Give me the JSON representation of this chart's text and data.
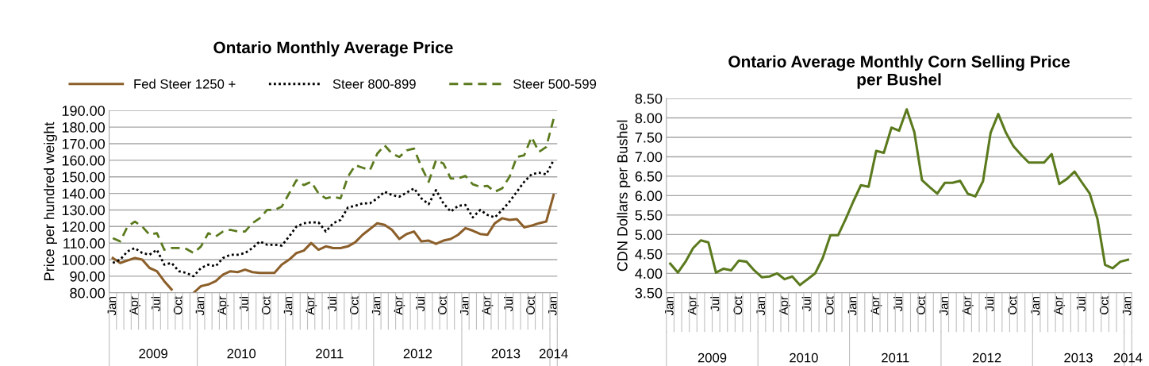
{
  "chart_data": [
    {
      "type": "line",
      "title": "Ontario Monthly Average Price",
      "ylabel": "Price per hundred weight",
      "categories": [
        "Jan",
        null,
        null,
        "Apr",
        null,
        null,
        "Jul",
        null,
        null,
        "Oct",
        null,
        null,
        "Jan",
        null,
        null,
        "Apr",
        null,
        null,
        "Jul",
        null,
        null,
        "Oct",
        null,
        null,
        "Jan",
        null,
        null,
        "Apr",
        null,
        null,
        "Jul",
        null,
        null,
        "Oct",
        null,
        null,
        "Jan",
        null,
        null,
        "Apr",
        null,
        null,
        "Jul",
        null,
        null,
        "Oct",
        null,
        null,
        "Jan",
        null,
        null,
        "Apr",
        null,
        null,
        "Jul",
        null,
        null,
        "Oct",
        null,
        null,
        "Jan"
      ],
      "annotations": [
        "2009",
        "2010",
        "2011",
        "2012",
        "2013",
        "2014"
      ],
      "series": [
        {
          "name": "Fed Steer 1250 +",
          "color": "#8c5f2a",
          "line_style": "solid",
          "values": [
            101,
            98,
            99.5,
            101,
            100,
            95,
            93,
            87,
            82,
            null,
            null,
            80,
            84,
            85,
            87,
            91,
            93,
            92.5,
            94,
            92.5,
            92,
            92,
            92,
            97,
            100,
            104,
            105.5,
            110,
            106,
            108,
            107,
            107,
            108,
            110.5,
            115,
            118.5,
            122,
            121,
            118,
            112.5,
            115.5,
            117,
            111,
            111.5,
            109.5,
            111.5,
            112.5,
            115,
            119,
            117.5,
            115.5,
            115,
            122,
            125,
            124,
            124.5,
            119.5,
            120.5,
            122,
            123,
            139
          ]
        },
        {
          "name": "Steer 800-899",
          "color": "#000000",
          "line_style": "dotted",
          "values": [
            98,
            100,
            105,
            107,
            104,
            103,
            106,
            97,
            98,
            93,
            92,
            90,
            95,
            97,
            96,
            101,
            103,
            103,
            104,
            107,
            111,
            109,
            109,
            108.5,
            114,
            120,
            122,
            122.5,
            122.5,
            117,
            122,
            124,
            131.5,
            132.5,
            134,
            134,
            137,
            141,
            139,
            138,
            140.5,
            143,
            137,
            133.5,
            142,
            134,
            129,
            132.5,
            133,
            125.5,
            130,
            127,
            125.5,
            130,
            135,
            141,
            147,
            151.5,
            152.5,
            151.5,
            160
          ]
        },
        {
          "name": "Steer 500-599",
          "color": "#5b7a1e",
          "line_style": "dashed",
          "values": [
            113,
            111,
            120,
            123,
            120,
            115,
            116,
            106,
            107,
            107,
            106.5,
            104,
            108,
            116,
            114,
            117,
            118,
            117,
            117,
            122,
            125,
            130,
            130,
            132,
            140,
            148,
            145,
            147,
            140,
            137,
            138,
            137,
            150,
            157,
            155.5,
            154,
            164,
            169,
            164,
            162,
            166,
            167,
            156,
            147,
            160,
            158,
            149,
            149,
            150.5,
            145.5,
            144,
            144.5,
            141,
            143,
            150,
            162,
            163,
            174,
            165,
            168,
            185
          ]
        }
      ],
      "ylim": [
        80,
        190
      ],
      "yticks": [
        {
          "value": 80,
          "label": "80.00"
        },
        {
          "value": 90,
          "label": "90.00"
        },
        {
          "value": 100,
          "label": "100.00"
        },
        {
          "value": 110,
          "label": "110.00"
        },
        {
          "value": 120,
          "label": "120.00"
        },
        {
          "value": 130,
          "label": "130.00"
        },
        {
          "value": 140,
          "label": "140.00"
        },
        {
          "value": 150,
          "label": "150.00"
        },
        {
          "value": 160,
          "label": "160.00"
        },
        {
          "value": 170,
          "label": "170.00"
        },
        {
          "value": 180,
          "label": "180.00"
        },
        {
          "value": 190,
          "label": "190.00"
        }
      ],
      "grid": "y",
      "legend": "top"
    },
    {
      "type": "line",
      "title": "Ontario Average Monthly Corn Selling Price\nper Bushel",
      "ylabel": "CDN Dollars per Bushel",
      "categories": [
        "Jan",
        null,
        null,
        "Apr",
        null,
        null,
        "Jul",
        null,
        null,
        "Oct",
        null,
        null,
        "Jan",
        null,
        null,
        "Apr",
        null,
        null,
        "Jul",
        null,
        null,
        "Oct",
        null,
        null,
        "Jan",
        null,
        null,
        "Apr",
        null,
        null,
        "Jul",
        null,
        null,
        "Oct",
        null,
        null,
        "Jan",
        null,
        null,
        "Apr",
        null,
        null,
        "Jul",
        null,
        null,
        "Oct",
        null,
        null,
        "Jan",
        null,
        null,
        "Apr",
        null,
        null,
        "Jul",
        null,
        null,
        "Oct",
        null,
        null,
        "Jan"
      ],
      "annotations": [
        "2009",
        "2010",
        "2011",
        "2012",
        "2013",
        "2014"
      ],
      "series": [
        {
          "color": "#5b7a1e",
          "values": [
            4.25,
            4.02,
            4.3,
            4.65,
            4.85,
            4.8,
            4.02,
            4.12,
            4.08,
            4.33,
            4.3,
            4.08,
            3.9,
            3.92,
            4.0,
            3.85,
            3.92,
            3.7,
            3.85,
            4.0,
            4.4,
            4.98,
            4.98,
            5.4,
            5.85,
            6.27,
            6.23,
            7.15,
            7.1,
            7.75,
            7.67,
            8.22,
            7.63,
            6.4,
            6.22,
            6.05,
            6.33,
            6.33,
            6.38,
            6.05,
            5.98,
            6.37,
            7.62,
            8.1,
            7.62,
            7.27,
            7.05,
            6.85,
            6.85,
            6.85,
            7.07,
            6.3,
            6.43,
            6.62,
            6.33,
            6.05,
            5.4,
            4.22,
            4.13,
            4.3,
            4.35
          ]
        }
      ],
      "ylim": [
        3.5,
        8.5
      ],
      "yticks": [
        {
          "value": 3.5,
          "label": "3.50"
        },
        {
          "value": 4,
          "label": "4.00"
        },
        {
          "value": 4.5,
          "label": "4.50"
        },
        {
          "value": 5,
          "label": "5.00"
        },
        {
          "value": 5.5,
          "label": "5.50"
        },
        {
          "value": 6,
          "label": "6.00"
        },
        {
          "value": 6.5,
          "label": "6.50"
        },
        {
          "value": 7,
          "label": "7.00"
        },
        {
          "value": 7.5,
          "label": "7.50"
        },
        {
          "value": 8,
          "label": "8.00"
        },
        {
          "value": 8.5,
          "label": "8.50"
        }
      ],
      "grid": "y"
    }
  ]
}
